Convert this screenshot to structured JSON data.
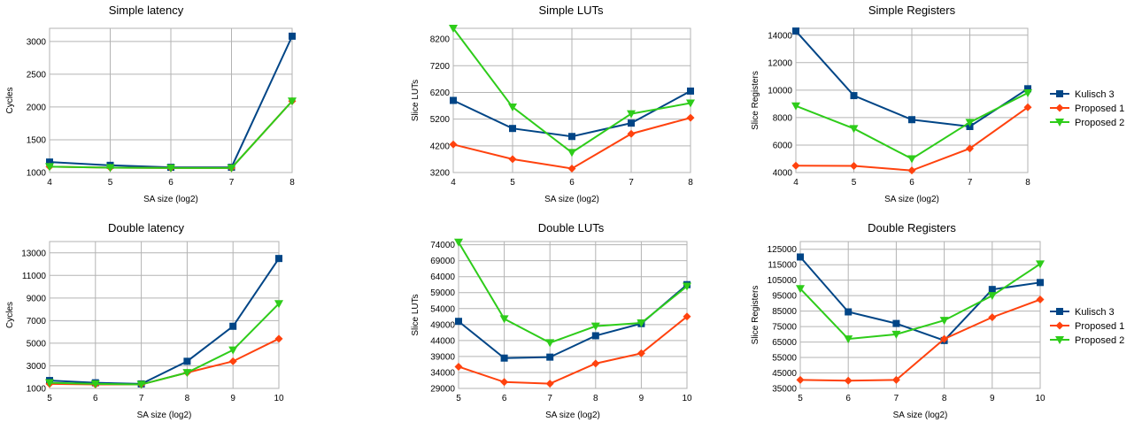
{
  "colors": {
    "Kulisch 3": "#004586",
    "Proposed 1": "#ff420e",
    "Proposed 2": "#2ecc1a"
  },
  "chart_data": [
    {
      "type": "line",
      "title": "Simple latency",
      "xlabel": "SA size (log2)",
      "ylabel": "Cycles",
      "x": [
        4,
        5,
        6,
        7,
        8
      ],
      "ylim": [
        1000,
        3200
      ],
      "yticks": [
        1000,
        1500,
        2000,
        2500,
        3000
      ],
      "series": [
        {
          "name": "Kulisch 3",
          "marker": "square",
          "values": [
            1160,
            1110,
            1080,
            1080,
            3080
          ]
        },
        {
          "name": "Proposed 1",
          "marker": "diamond",
          "values": [
            1090,
            1075,
            1070,
            1070,
            2090
          ]
        },
        {
          "name": "Proposed 2",
          "marker": "triangle-down",
          "values": [
            1090,
            1075,
            1070,
            1070,
            2090
          ]
        }
      ]
    },
    {
      "type": "line",
      "title": "Simple LUTs",
      "xlabel": "SA size (log2)",
      "ylabel": "Slice LUTs",
      "x": [
        4,
        5,
        6,
        7,
        8
      ],
      "ylim": [
        3200,
        8600
      ],
      "yticks": [
        3200,
        4200,
        5200,
        6200,
        7200,
        8200
      ],
      "series": [
        {
          "name": "Kulisch 3",
          "marker": "square",
          "values": [
            5900,
            4850,
            4550,
            5050,
            6250
          ]
        },
        {
          "name": "Proposed 1",
          "marker": "diamond",
          "values": [
            4250,
            3700,
            3350,
            4650,
            5250
          ]
        },
        {
          "name": "Proposed 2",
          "marker": "triangle-down",
          "values": [
            8600,
            5650,
            3950,
            5400,
            5800
          ]
        }
      ]
    },
    {
      "type": "line",
      "title": "Simple Registers",
      "xlabel": "SA size (log2)",
      "ylabel": "Slice Registers",
      "x": [
        4,
        5,
        6,
        7,
        8
      ],
      "ylim": [
        4000,
        14500
      ],
      "yticks": [
        4000,
        6000,
        8000,
        10000,
        12000,
        14000
      ],
      "series": [
        {
          "name": "Kulisch 3",
          "marker": "square",
          "values": [
            14300,
            9600,
            7850,
            7350,
            10100
          ]
        },
        {
          "name": "Proposed 1",
          "marker": "diamond",
          "values": [
            4500,
            4480,
            4150,
            5750,
            8750
          ]
        },
        {
          "name": "Proposed 2",
          "marker": "triangle-down",
          "values": [
            8850,
            7200,
            5000,
            7650,
            9800
          ]
        }
      ]
    },
    {
      "type": "line",
      "title": "Double latency",
      "xlabel": "SA size (log2)",
      "ylabel": "Cycles",
      "x": [
        5,
        6,
        7,
        8,
        9,
        10
      ],
      "ylim": [
        1000,
        14000
      ],
      "yticks": [
        1000,
        3000,
        5000,
        7000,
        9000,
        11000,
        13000
      ],
      "series": [
        {
          "name": "Kulisch 3",
          "marker": "square",
          "values": [
            1700,
            1500,
            1400,
            3400,
            6500,
            12500
          ]
        },
        {
          "name": "Proposed 1",
          "marker": "diamond",
          "values": [
            1400,
            1350,
            1350,
            2400,
            3400,
            5400
          ]
        },
        {
          "name": "Proposed 2",
          "marker": "triangle-down",
          "values": [
            1500,
            1400,
            1350,
            2400,
            4400,
            8500
          ]
        }
      ]
    },
    {
      "type": "line",
      "title": "Double LUTs",
      "xlabel": "SA size (log2)",
      "ylabel": "Slice LUTs",
      "x": [
        5,
        6,
        7,
        8,
        9,
        10
      ],
      "ylim": [
        29000,
        75000
      ],
      "yticks": [
        29000,
        34000,
        39000,
        44000,
        49000,
        54000,
        59000,
        64000,
        69000,
        74000
      ],
      "series": [
        {
          "name": "Kulisch 3",
          "marker": "square",
          "values": [
            50000,
            38500,
            38800,
            45500,
            49300,
            61500
          ]
        },
        {
          "name": "Proposed 1",
          "marker": "diamond",
          "values": [
            35800,
            31000,
            30500,
            36800,
            40000,
            51500
          ]
        },
        {
          "name": "Proposed 2",
          "marker": "triangle-down",
          "values": [
            74800,
            50800,
            43300,
            48500,
            49500,
            61000
          ]
        }
      ]
    },
    {
      "type": "line",
      "title": "Double Registers",
      "xlabel": "SA size (log2)",
      "ylabel": "Slice Registers",
      "x": [
        5,
        6,
        7,
        8,
        9,
        10
      ],
      "ylim": [
        35000,
        130000
      ],
      "yticks": [
        35000,
        45000,
        55000,
        65000,
        75000,
        85000,
        95000,
        105000,
        115000,
        125000
      ],
      "series": [
        {
          "name": "Kulisch 3",
          "marker": "square",
          "values": [
            120000,
            84500,
            77000,
            66000,
            99000,
            103500
          ]
        },
        {
          "name": "Proposed 1",
          "marker": "diamond",
          "values": [
            40500,
            40000,
            40500,
            67000,
            81000,
            92500
          ]
        },
        {
          "name": "Proposed 2",
          "marker": "triangle-down",
          "values": [
            99500,
            67000,
            70000,
            79000,
            95000,
            115500
          ]
        }
      ]
    }
  ],
  "legends": [
    {
      "entries": [
        "Kulisch 3",
        "Proposed 1",
        "Proposed 2"
      ]
    },
    {
      "entries": [
        "Kulisch 3",
        "Proposed 1",
        "Proposed 2"
      ]
    }
  ]
}
